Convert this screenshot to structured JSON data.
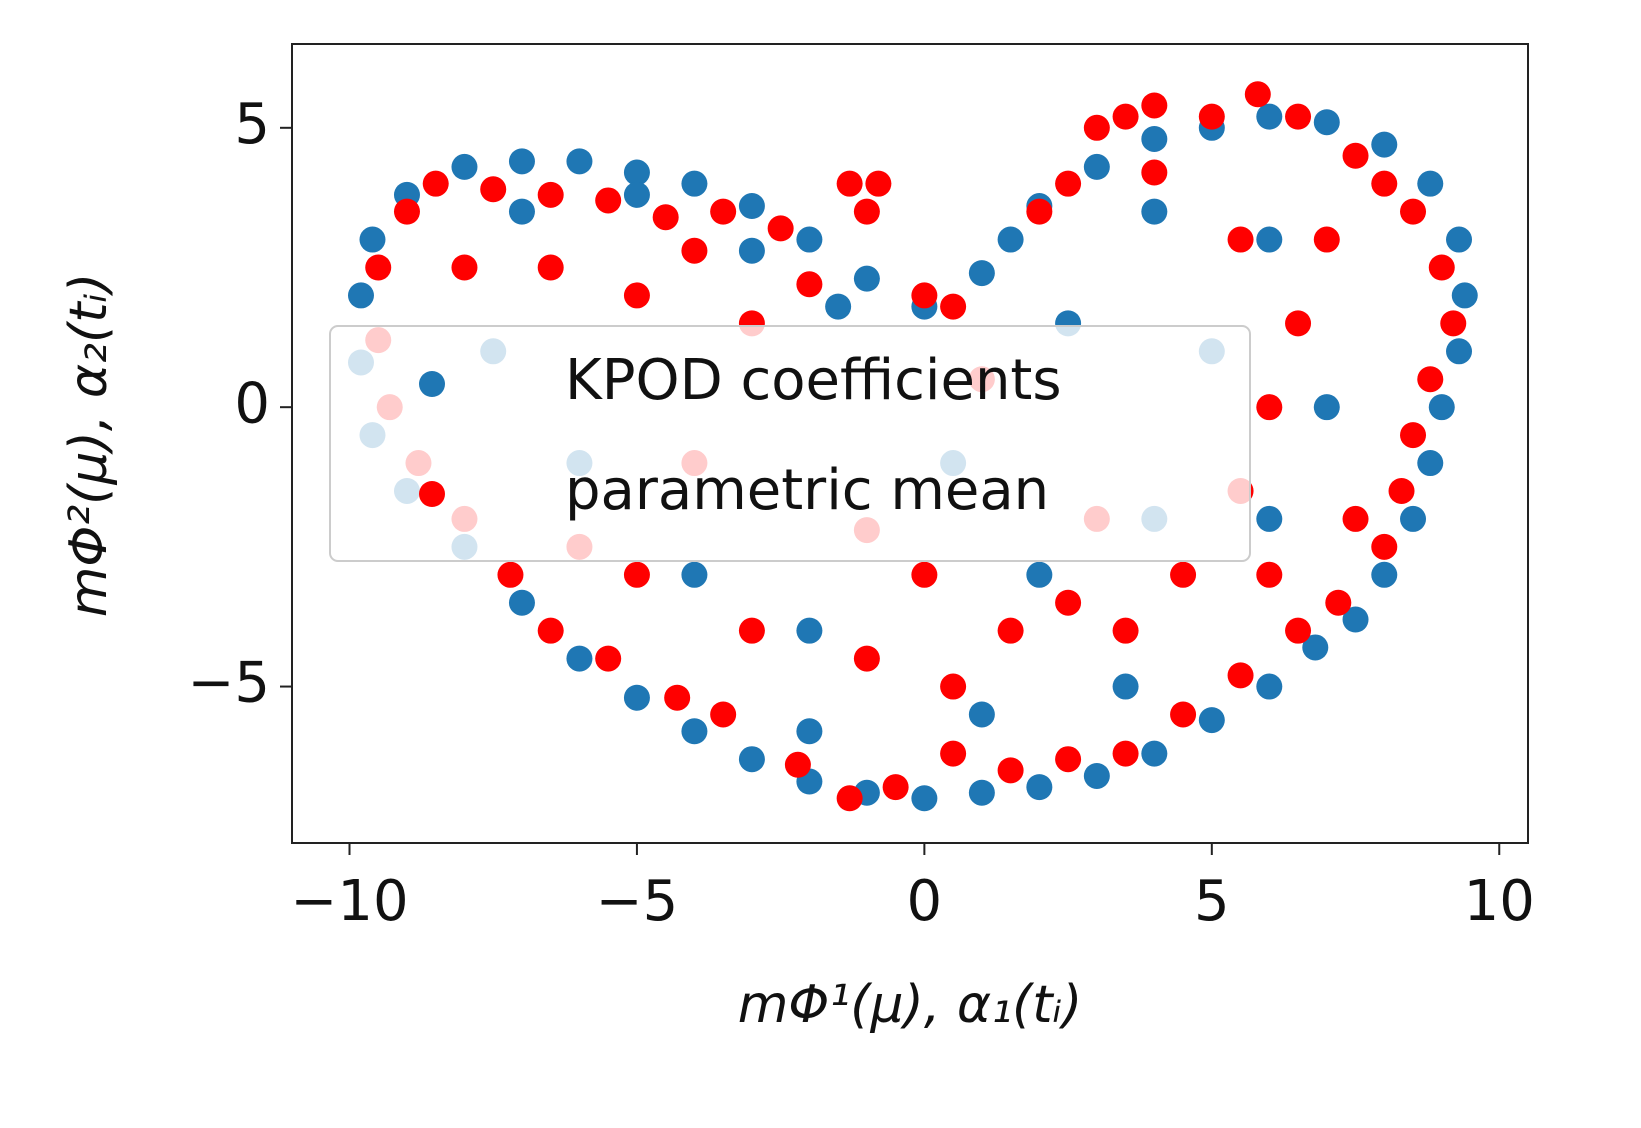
{
  "chart_data": {
    "type": "scatter",
    "xlabel": "mΦ¹(μ), α₁(tᵢ)",
    "ylabel": "mΦ²(μ), α₂(tᵢ)",
    "xlim": [
      -11.0,
      10.5
    ],
    "ylim": [
      -7.8,
      6.5
    ],
    "xticks": [
      {
        "value": -10,
        "label": "−10"
      },
      {
        "value": -5,
        "label": "−5"
      },
      0,
      5,
      10
    ],
    "yticks": [
      {
        "value": -5,
        "label": "−5"
      },
      0,
      5
    ],
    "legend": "center left",
    "series": [
      {
        "name": "KPOD coefficients",
        "color": "#1f77b4",
        "x": [
          -9.8,
          -9.6,
          -9,
          -8,
          -7,
          -6,
          -5,
          -4,
          -3,
          -2,
          -1,
          0,
          1,
          1.5,
          2,
          3,
          4,
          5,
          6,
          7,
          8,
          8.8,
          9.3,
          9.4,
          9.3,
          9,
          8.8,
          8.5,
          8,
          7.5,
          6.8,
          6,
          5,
          4,
          3,
          2,
          1,
          0,
          -1,
          -2,
          -3,
          -4,
          -5,
          -6,
          -7,
          -8,
          -9,
          -9.6,
          -9.8,
          -7,
          -5,
          -3,
          -1.5,
          0.5,
          -2,
          2,
          4,
          5,
          6,
          3.5,
          -4,
          -6,
          -7.5,
          7,
          6,
          2.5,
          4,
          -2,
          1
        ],
        "values": [
          2,
          3,
          3.8,
          4.3,
          4.4,
          4.4,
          4.2,
          4,
          3.6,
          3,
          2.3,
          1.8,
          2.4,
          3,
          3.6,
          4.3,
          4.8,
          5,
          5.2,
          5.1,
          4.7,
          4,
          3,
          2,
          1,
          0,
          -1,
          -2,
          -3,
          -3.8,
          -4.3,
          -5,
          -5.6,
          -6.2,
          -6.6,
          -6.8,
          -6.9,
          -7,
          -6.9,
          -6.7,
          -6.3,
          -5.8,
          -5.2,
          -4.5,
          -3.5,
          -2.5,
          -1.5,
          -0.5,
          0.8,
          3.5,
          3.8,
          2.8,
          1.8,
          -1,
          -4,
          -3,
          -2,
          1,
          3,
          -5,
          -3,
          -1,
          1,
          0,
          -2,
          1.5,
          3.5,
          -5.8,
          -5.5
        ]
      },
      {
        "name": "parametric mean",
        "color": "#ff0000",
        "x": [
          -9.5,
          -9,
          -8.5,
          -7.5,
          -6.5,
          -5.5,
          -4.5,
          -3.5,
          -2.5,
          -1.3,
          -0.8,
          -1,
          0,
          0.5,
          2,
          2.5,
          3,
          3.5,
          4,
          5,
          5.8,
          6.5,
          7.5,
          8,
          8.5,
          9,
          9.2,
          8.8,
          8.5,
          8.3,
          8,
          7.2,
          6.5,
          5.5,
          4.5,
          3.5,
          2.5,
          1.5,
          0.5,
          -0.5,
          -1.3,
          -2.2,
          -3.5,
          -4.3,
          -5.5,
          -6.5,
          -7.2,
          -8,
          -8.8,
          -9.3,
          -9.5,
          -8,
          -6.5,
          -5,
          -4,
          -3,
          -2,
          -6,
          -5,
          -3,
          -1,
          0.5,
          1.5,
          2.5,
          3.5,
          4.5,
          5.5,
          6,
          6.5,
          7,
          5.5,
          4,
          3,
          1,
          -1,
          -4,
          7.5,
          6,
          0
        ],
        "values": [
          2.5,
          3.5,
          4,
          3.9,
          3.8,
          3.7,
          3.4,
          3.5,
          3.2,
          4,
          4,
          3.5,
          2,
          1.8,
          3.5,
          4,
          5,
          5.2,
          5.4,
          5.2,
          5.6,
          5.2,
          4.5,
          4,
          3.5,
          2.5,
          1.5,
          0.5,
          -0.5,
          -1.5,
          -2.5,
          -3.5,
          -4,
          -4.8,
          -5.5,
          -6.2,
          -6.3,
          -6.5,
          -6.2,
          -6.8,
          -7,
          -6.4,
          -5.5,
          -5.2,
          -4.5,
          -4,
          -3,
          -2,
          -1,
          0,
          1.2,
          2.5,
          2.5,
          2,
          2.8,
          1.5,
          2.2,
          -2.5,
          -3,
          -4,
          -4.5,
          -5,
          -4,
          -3.5,
          -4,
          -3,
          -1.5,
          0,
          1.5,
          3,
          3,
          4.2,
          -2,
          0.5,
          -2.2,
          -1,
          -2,
          -3,
          -3
        ]
      }
    ]
  }
}
